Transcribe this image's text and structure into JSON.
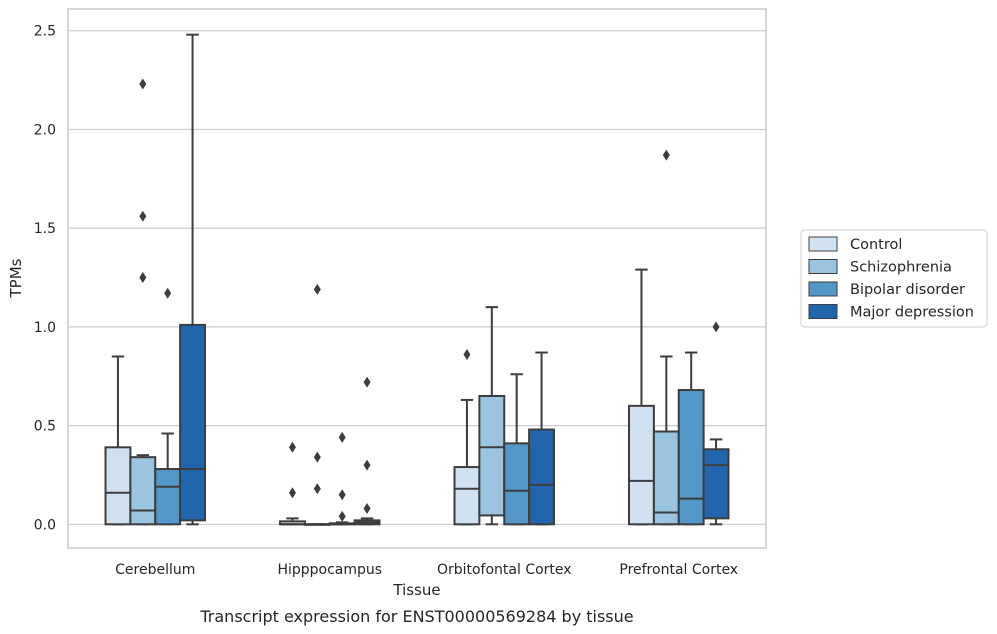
{
  "caption": "Transcript expression for ENST00000569284 by tissue",
  "chart_data": {
    "type": "box",
    "xlabel": "Tissue",
    "ylabel": "TPMs",
    "ylim": [
      -0.12,
      2.61
    ],
    "yticks": [
      0.0,
      0.5,
      1.0,
      1.5,
      2.0,
      2.5
    ],
    "ytick_labels": [
      "0.0",
      "0.5",
      "1.0",
      "1.5",
      "2.0",
      "2.5"
    ],
    "grid": true,
    "legend_position": "right",
    "categories": [
      "Cerebellum",
      "Hipppocampus",
      "Orbitofontal Cortex",
      "Prefrontal Cortex"
    ],
    "series": [
      {
        "name": "Control",
        "color": "#d0e2f2",
        "boxes": [
          {
            "whislo": 0.0,
            "q1": 0.0,
            "med": 0.16,
            "q3": 0.39,
            "whishi": 0.85,
            "fliers": []
          },
          {
            "whislo": 0.0,
            "q1": 0.0,
            "med": 0.0,
            "q3": 0.015,
            "whishi": 0.03,
            "fliers": [
              0.16,
              0.39
            ]
          },
          {
            "whislo": 0.0,
            "q1": 0.0,
            "med": 0.18,
            "q3": 0.29,
            "whishi": 0.63,
            "fliers": [
              0.86
            ]
          },
          {
            "whislo": 0.0,
            "q1": 0.0,
            "med": 0.22,
            "q3": 0.6,
            "whishi": 1.29,
            "fliers": []
          }
        ]
      },
      {
        "name": "Schizophrenia",
        "color": "#9ac4df",
        "boxes": [
          {
            "whislo": 0.0,
            "q1": 0.0,
            "med": 0.07,
            "q3": 0.34,
            "whishi": 0.35,
            "fliers": [
              1.25,
              1.56,
              2.23
            ]
          },
          {
            "whislo": 0.0,
            "q1": 0.0,
            "med": 0.0,
            "q3": 0.0,
            "whishi": 0.0,
            "fliers": [
              0.18,
              0.34,
              1.19
            ]
          },
          {
            "whislo": 0.0,
            "q1": 0.045,
            "med": 0.39,
            "q3": 0.65,
            "whishi": 1.1,
            "fliers": []
          },
          {
            "whislo": 0.0,
            "q1": 0.0,
            "med": 0.06,
            "q3": 0.47,
            "whishi": 0.85,
            "fliers": [
              1.87
            ]
          }
        ]
      },
      {
        "name": "Bipolar disorder",
        "color": "#5297c8",
        "boxes": [
          {
            "whislo": 0.0,
            "q1": 0.0,
            "med": 0.19,
            "q3": 0.28,
            "whishi": 0.46,
            "fliers": [
              1.17
            ]
          },
          {
            "whislo": 0.0,
            "q1": 0.0,
            "med": 0.0,
            "q3": 0.005,
            "whishi": 0.01,
            "fliers": [
              0.04,
              0.15,
              0.44
            ]
          },
          {
            "whislo": 0.0,
            "q1": 0.0,
            "med": 0.17,
            "q3": 0.41,
            "whishi": 0.76,
            "fliers": []
          },
          {
            "whislo": 0.0,
            "q1": 0.0,
            "med": 0.13,
            "q3": 0.68,
            "whishi": 0.87,
            "fliers": []
          }
        ]
      },
      {
        "name": "Major depression",
        "color": "#2166ac",
        "boxes": [
          {
            "whislo": 0.0,
            "q1": 0.02,
            "med": 0.28,
            "q3": 1.01,
            "whishi": 2.48,
            "fliers": []
          },
          {
            "whislo": 0.0,
            "q1": 0.0,
            "med": 0.01,
            "q3": 0.02,
            "whishi": 0.03,
            "fliers": [
              0.08,
              0.3,
              0.72
            ]
          },
          {
            "whislo": 0.0,
            "q1": 0.0,
            "med": 0.2,
            "q3": 0.48,
            "whishi": 0.87,
            "fliers": []
          },
          {
            "whislo": 0.0,
            "q1": 0.03,
            "med": 0.3,
            "q3": 0.38,
            "whishi": 0.43,
            "fliers": [
              1.0
            ]
          }
        ]
      }
    ]
  }
}
